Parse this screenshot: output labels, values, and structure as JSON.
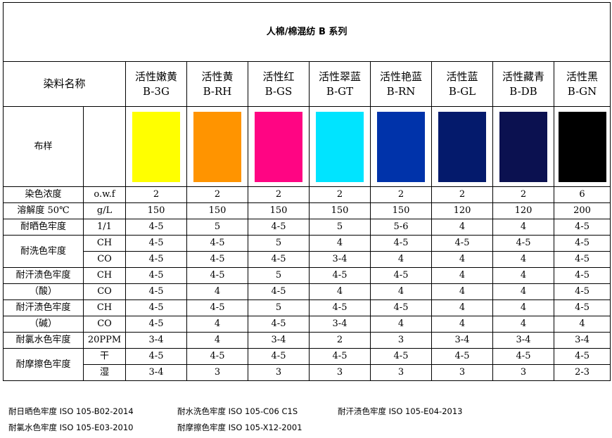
{
  "title": "人棉/棉混纺 B 系列",
  "header": {
    "dye_name_label": "染料名称",
    "sample_label": "布样"
  },
  "dyes": [
    {
      "name": "活性嫩黄",
      "code": "B-3G",
      "color": "#ffff00"
    },
    {
      "name": "活性黄",
      "code": "B-RH",
      "color": "#ff9400"
    },
    {
      "name": "活性红",
      "code": "B-GS",
      "color": "#ff0583"
    },
    {
      "name": "活性翠蓝",
      "code": "B-GT",
      "color": "#00e4ff"
    },
    {
      "name": "活性艳蓝",
      "code": "B-RN",
      "color": "#0033aa"
    },
    {
      "name": "活性蓝",
      "code": "B-GL",
      "color": "#041a6c"
    },
    {
      "name": "活性藏青",
      "code": "B-DB",
      "color": "#0b1150"
    },
    {
      "name": "活性黑",
      "code": "B-GN",
      "color": "#000000"
    }
  ],
  "rows": [
    {
      "label": "染色浓度",
      "sub": "o.w.f",
      "values": [
        "2",
        "2",
        "2",
        "2",
        "2",
        "2",
        "2",
        "6"
      ]
    },
    {
      "label": "溶解度 50℃",
      "sub": "g/L",
      "values": [
        "150",
        "150",
        "150",
        "150",
        "150",
        "120",
        "120",
        "200"
      ]
    },
    {
      "label": "耐晒色牢度",
      "sub": "1/1",
      "values": [
        "4-5",
        "5",
        "4-5",
        "5",
        "5-6",
        "4",
        "4",
        "4-5"
      ]
    },
    {
      "label": "耐洗色牢度",
      "sub": "CH",
      "values": [
        "4-5",
        "4-5",
        "5",
        "4",
        "4-5",
        "4-5",
        "4-5",
        "4-5"
      ]
    },
    {
      "label": "",
      "sub": "CO",
      "values": [
        "4-5",
        "4-5",
        "4-5",
        "3-4",
        "4",
        "4",
        "4",
        "4-5"
      ]
    },
    {
      "label": "耐汗渍色牢度",
      "sub": "CH",
      "values": [
        "4-5",
        "4-5",
        "5",
        "4-5",
        "4-5",
        "4",
        "4",
        "4-5"
      ]
    },
    {
      "label": "（酸）",
      "sub": "CO",
      "values": [
        "4-5",
        "4",
        "4-5",
        "4",
        "4",
        "4",
        "4",
        "4-5"
      ]
    },
    {
      "label": "耐汗渍色牢度",
      "sub": "CH",
      "values": [
        "4-5",
        "4-5",
        "5",
        "4-5",
        "4-5",
        "4",
        "4",
        "4-5"
      ]
    },
    {
      "label": "（碱）",
      "sub": "CO",
      "values": [
        "4-5",
        "4",
        "4-5",
        "3-4",
        "4",
        "4",
        "4",
        "4"
      ]
    },
    {
      "label": "耐氯水色牢度",
      "sub": "20PPM",
      "values": [
        "3-4",
        "4",
        "3-4",
        "2",
        "3",
        "3-4",
        "3-4",
        "3-4"
      ]
    },
    {
      "label": "耐摩擦色牢度",
      "sub": "干",
      "values": [
        "4-5",
        "4-5",
        "4-5",
        "4-5",
        "4-5",
        "4-5",
        "4-5",
        "4-5"
      ]
    },
    {
      "label": "",
      "sub": "湿",
      "values": [
        "3-4",
        "3",
        "3",
        "3",
        "3",
        "3",
        "3",
        "2-3"
      ]
    }
  ],
  "footnotes": [
    "耐日晒色牢度 ISO 105-B02-2014",
    "耐水洗色牢度 ISO 105-C06 C1S",
    "耐汗渍色牢度 ISO 105-E04-2013",
    "耐氯水色牢度 ISO 105-E03-2010",
    "耐摩擦色牢度 ISO 105-X12-2001"
  ]
}
